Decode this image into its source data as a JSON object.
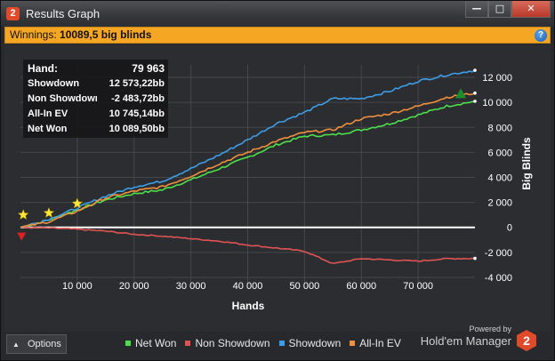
{
  "window": {
    "title": "Results Graph",
    "app_icon_label": "2"
  },
  "window_controls": {
    "minimize": "—",
    "maximize": "□",
    "close": "✕"
  },
  "banner": {
    "label": "Winnings:",
    "value": "10089,5 big blinds",
    "help": "?"
  },
  "stats": [
    {
      "label": "Hand:",
      "value": "79 963"
    },
    {
      "label": "Showdown",
      "value": "12 573,22bb"
    },
    {
      "label": "Non Showdown",
      "value": "-2 483,72bb"
    },
    {
      "label": "All-In EV",
      "value": "10 745,14bb"
    },
    {
      "label": "Net Won",
      "value": "10 089,50bb"
    }
  ],
  "options": {
    "label": "Options",
    "icon": "chevron-up-icon"
  },
  "branding": {
    "powered": "Powered by",
    "name": "Hold'em Manager",
    "logo_label": "2"
  },
  "colors": {
    "net_won": "#4ee04a",
    "non_showdown": "#e05353",
    "showdown": "#3d9ee8",
    "all_in_ev": "#f08f3c",
    "banner": "#f5a623"
  },
  "chart_data": {
    "type": "line",
    "title": "",
    "xlabel": "Hands",
    "ylabel": "Big Blinds",
    "xlim": [
      0,
      80000
    ],
    "ylim": [
      -4500,
      13000
    ],
    "x_ticks": [
      10000,
      20000,
      30000,
      40000,
      50000,
      60000,
      70000
    ],
    "x_tick_labels": [
      "10 000",
      "20 000",
      "30 000",
      "40 000",
      "50 000",
      "60 000",
      "70 000"
    ],
    "y_ticks": [
      -4000,
      -2000,
      0,
      2000,
      4000,
      6000,
      8000,
      10000,
      12000
    ],
    "y_tick_labels": [
      "-4 000",
      "-2 000",
      "0",
      "2 000",
      "4 000",
      "6 000",
      "8 000",
      "10 000",
      "12 000"
    ],
    "grid": true,
    "legend_position": "bottom",
    "x": [
      0,
      5000,
      10000,
      15000,
      20000,
      25000,
      30000,
      35000,
      40000,
      45000,
      50000,
      55000,
      60000,
      65000,
      70000,
      75000,
      80000
    ],
    "series": [
      {
        "name": "Net Won",
        "color": "#4ee04a",
        "values": [
          0,
          600,
          1400,
          2200,
          2700,
          3000,
          3800,
          4700,
          5600,
          6600,
          7300,
          7400,
          7800,
          8300,
          9000,
          9700,
          10090
        ]
      },
      {
        "name": "Non Showdown",
        "color": "#e05353",
        "values": [
          0,
          -50,
          -150,
          -300,
          -550,
          -700,
          -900,
          -1100,
          -1400,
          -1650,
          -1900,
          -2900,
          -2500,
          -2600,
          -2700,
          -2500,
          -2480
        ]
      },
      {
        "name": "Showdown",
        "color": "#3d9ee8",
        "values": [
          0,
          650,
          1550,
          2500,
          3250,
          3700,
          4700,
          5800,
          7000,
          8300,
          9200,
          10300,
          10300,
          10900,
          11700,
          12200,
          12570
        ]
      },
      {
        "name": "All-In EV",
        "color": "#f08f3c",
        "values": [
          0,
          450,
          1300,
          2350,
          2900,
          3250,
          4100,
          5100,
          6000,
          6900,
          7600,
          7800,
          8700,
          9100,
          9700,
          10400,
          10745
        ]
      }
    ],
    "markers": [
      {
        "type": "star",
        "color": "#ffe63a",
        "x": 500,
        "y": 1000
      },
      {
        "type": "star",
        "color": "#ffe63a",
        "x": 5000,
        "y": 1150
      },
      {
        "type": "star",
        "color": "#ffe63a",
        "x": 10000,
        "y": 1900
      },
      {
        "type": "triangle-down",
        "color": "#e02020",
        "x": 200,
        "y": -700
      },
      {
        "type": "triangle-up",
        "color": "#1d8f2a",
        "x": 77500,
        "y": 10700
      }
    ]
  }
}
